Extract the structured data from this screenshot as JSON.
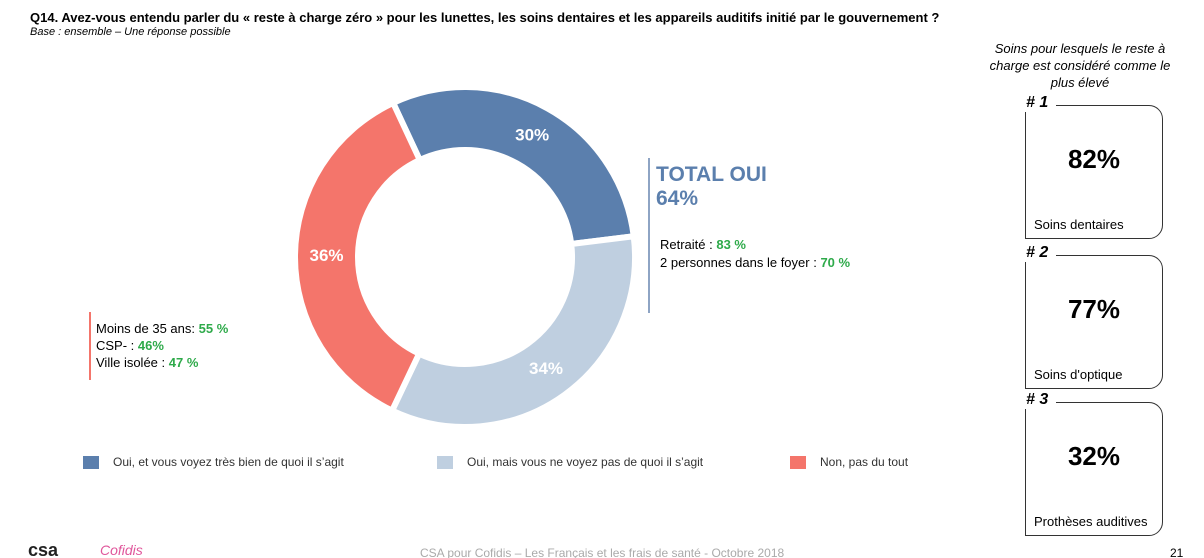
{
  "chart_data": {
    "type": "donut",
    "title": "Q14. Avez-vous entendu parler du « reste à charge zéro » pour les lunettes, les soins dentaires et les appareils auditifs initié par le gouvernement ?",
    "subtitle": "Base : ensemble – Une réponse possible",
    "categories": [
      "Oui, et vous voyez très bien de quoi il s’agit",
      "Oui, mais vous ne voyez pas de quoi il s’agit",
      "Non, pas du tout"
    ],
    "values": [
      30,
      34,
      36
    ],
    "value_labels": [
      "30%",
      "34%",
      "36%"
    ],
    "colors": [
      "#5b7fad",
      "#bfcfe0",
      "#f4756b"
    ],
    "legend": "bottom"
  },
  "total": {
    "label": "TOTAL OUI",
    "value": "64%"
  },
  "oui_notes": [
    {
      "label": "Retraité : ",
      "value": "83 %"
    },
    {
      "label": "2 personnes dans le foyer : ",
      "value": "70 %"
    }
  ],
  "non_notes": [
    {
      "label": "Moins de 35 ans: ",
      "value": "55 %"
    },
    {
      "label": "CSP- : ",
      "value": "46%"
    },
    {
      "label": "Ville isolée : ",
      "value": "47 %"
    }
  ],
  "side": {
    "heading": "Soins pour lesquels le reste à charge est considéré comme le plus élevé",
    "items": [
      {
        "rank": "# 1",
        "value": "82%",
        "label": "Soins dentaires"
      },
      {
        "rank": "# 2",
        "value": "77%",
        "label": "Soins d'optique"
      },
      {
        "rank": "# 3",
        "value": "32%",
        "label": "Prothèses auditives"
      }
    ]
  },
  "footer": {
    "logo_left": "csa",
    "logo_right": "Cofidis",
    "text": "CSA pour Cofidis – Les Français et les frais de santé - Octobre 2018",
    "page": "21"
  }
}
